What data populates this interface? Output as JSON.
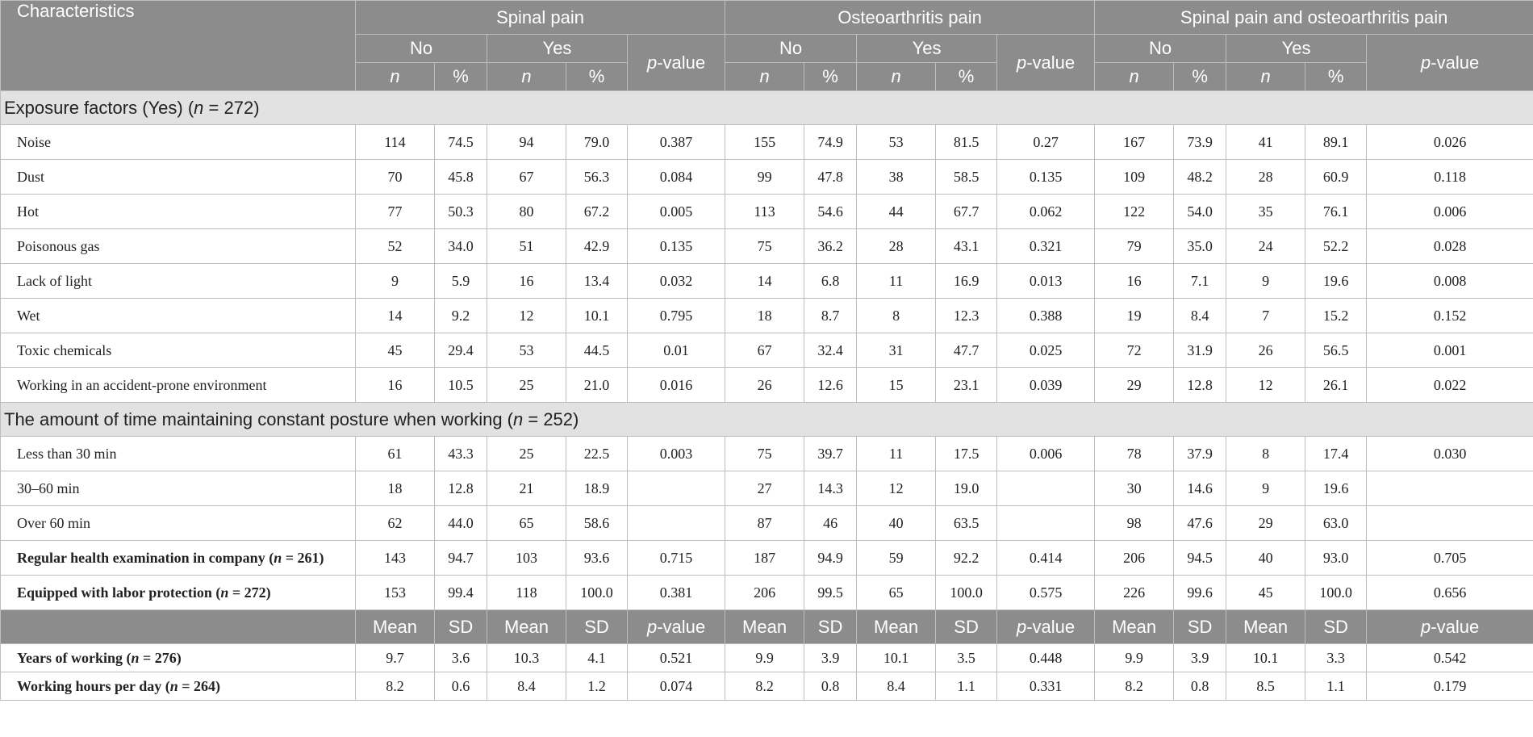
{
  "header": {
    "characteristics": "Characteristics",
    "groups": [
      "Spinal pain",
      "Osteoarthritis pain",
      "Spinal pain and osteoarthritis pain"
    ],
    "no": "No",
    "yes": "Yes",
    "p_italic": "p",
    "p_suffix": "-value",
    "n": "n",
    "pct": "%",
    "mean": "Mean",
    "sd": "SD"
  },
  "exposure_section": {
    "prefix": "Exposure factors (Yes) (",
    "n_italic": "n",
    "suffix": " = 272)"
  },
  "exposure_rows": [
    {
      "label": "Noise",
      "cells": [
        "114",
        "74.5",
        "94",
        "79.0",
        "0.387",
        "155",
        "74.9",
        "53",
        "81.5",
        "0.27",
        "167",
        "73.9",
        "41",
        "89.1",
        "0.026"
      ]
    },
    {
      "label": "Dust",
      "cells": [
        "70",
        "45.8",
        "67",
        "56.3",
        "0.084",
        "99",
        "47.8",
        "38",
        "58.5",
        "0.135",
        "109",
        "48.2",
        "28",
        "60.9",
        "0.118"
      ]
    },
    {
      "label": "Hot",
      "cells": [
        "77",
        "50.3",
        "80",
        "67.2",
        "0.005",
        "113",
        "54.6",
        "44",
        "67.7",
        "0.062",
        "122",
        "54.0",
        "35",
        "76.1",
        "0.006"
      ]
    },
    {
      "label": "Poisonous gas",
      "cells": [
        "52",
        "34.0",
        "51",
        "42.9",
        "0.135",
        "75",
        "36.2",
        "28",
        "43.1",
        "0.321",
        "79",
        "35.0",
        "24",
        "52.2",
        "0.028"
      ]
    },
    {
      "label": "Lack of light",
      "cells": [
        "9",
        "5.9",
        "16",
        "13.4",
        "0.032",
        "14",
        "6.8",
        "11",
        "16.9",
        "0.013",
        "16",
        "7.1",
        "9",
        "19.6",
        "0.008"
      ]
    },
    {
      "label": "Wet",
      "cells": [
        "14",
        "9.2",
        "12",
        "10.1",
        "0.795",
        "18",
        "8.7",
        "8",
        "12.3",
        "0.388",
        "19",
        "8.4",
        "7",
        "15.2",
        "0.152"
      ]
    },
    {
      "label": "Toxic chemicals",
      "cells": [
        "45",
        "29.4",
        "53",
        "44.5",
        "0.01",
        "67",
        "32.4",
        "31",
        "47.7",
        "0.025",
        "72",
        "31.9",
        "26",
        "56.5",
        "0.001"
      ]
    },
    {
      "label": "Working in an accident-prone environment",
      "cells": [
        "16",
        "10.5",
        "25",
        "21.0",
        "0.016",
        "26",
        "12.6",
        "15",
        "23.1",
        "0.039",
        "29",
        "12.8",
        "12",
        "26.1",
        "0.022"
      ]
    }
  ],
  "posture_section": {
    "prefix": "The amount of time maintaining constant posture when working (",
    "n_italic": "n",
    "suffix": " = 252)"
  },
  "posture_rows": [
    {
      "label": "Less than 30 min",
      "cells": [
        "61",
        "43.3",
        "25",
        "22.5",
        "0.003",
        "75",
        "39.7",
        "11",
        "17.5",
        "0.006",
        "78",
        "37.9",
        "8",
        "17.4",
        "0.030"
      ]
    },
    {
      "label": "30–60 min",
      "cells": [
        "18",
        "12.8",
        "21",
        "18.9",
        "",
        "27",
        "14.3",
        "12",
        "19.0",
        "",
        "30",
        "14.6",
        "9",
        "19.6",
        ""
      ]
    },
    {
      "label": "Over 60 min",
      "cells": [
        "62",
        "44.0",
        "65",
        "58.6",
        "",
        "87",
        "46",
        "40",
        "63.5",
        "",
        "98",
        "47.6",
        "29",
        "63.0",
        ""
      ]
    }
  ],
  "bold_rows": [
    {
      "prefix": "Regular health examination in company (",
      "n_italic": "n",
      "suffix": " = 261)",
      "cells": [
        "143",
        "94.7",
        "103",
        "93.6",
        "0.715",
        "187",
        "94.9",
        "59",
        "92.2",
        "0.414",
        "206",
        "94.5",
        "40",
        "93.0",
        "0.705"
      ]
    },
    {
      "prefix": "Equipped with labor protection (",
      "n_italic": "n",
      "suffix": " = 272)",
      "cells": [
        "153",
        "99.4",
        "118",
        "100.0",
        "0.381",
        "206",
        "99.5",
        "65",
        "100.0",
        "0.575",
        "226",
        "99.6",
        "45",
        "100.0",
        "0.656"
      ]
    }
  ],
  "mean_rows": [
    {
      "prefix": "Years of working (",
      "n_italic": "n",
      "suffix": " = 276)",
      "cells": [
        "9.7",
        "3.6",
        "10.3",
        "4.1",
        "0.521",
        "9.9",
        "3.9",
        "10.1",
        "3.5",
        "0.448",
        "9.9",
        "3.9",
        "10.1",
        "3.3",
        "0.542"
      ]
    },
    {
      "prefix": "Working hours per day (",
      "n_italic": "n",
      "suffix": " = 264)",
      "cells": [
        "8.2",
        "0.6",
        "8.4",
        "1.2",
        "0.074",
        "8.2",
        "0.8",
        "8.4",
        "1.1",
        "0.331",
        "8.2",
        "0.8",
        "8.5",
        "1.1",
        "0.179"
      ]
    }
  ],
  "colors": {
    "header_bg": "#8c8c8c",
    "section_bg": "#e2e2e2",
    "border": "#bdbdbd"
  }
}
